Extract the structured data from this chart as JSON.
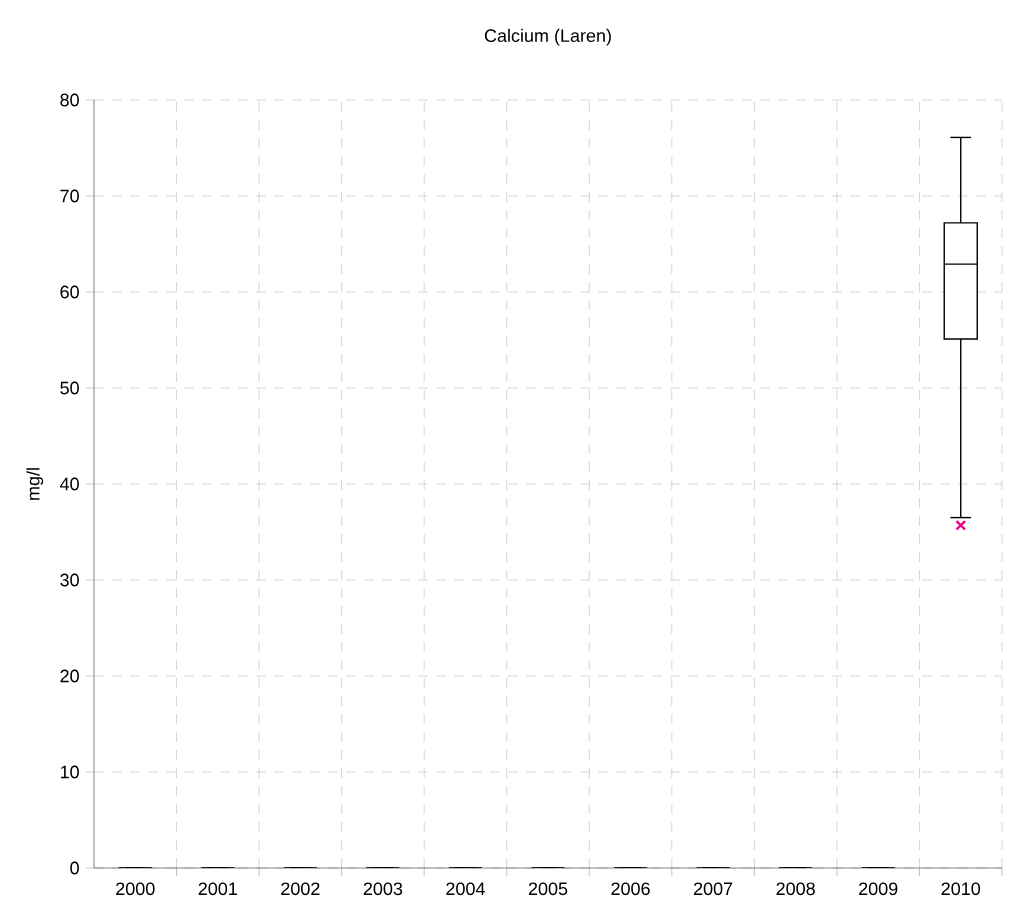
{
  "chart_data": {
    "type": "box",
    "title": "Calcium (Laren)",
    "ylabel": "mg/l",
    "categories": [
      "2000",
      "2001",
      "2002",
      "2003",
      "2004",
      "2005",
      "2006",
      "2007",
      "2008",
      "2009",
      "2010"
    ],
    "boxes": [
      {
        "low": 0,
        "q1": 0,
        "median": 0,
        "q3": 0,
        "high": 0
      },
      {
        "low": 0,
        "q1": 0,
        "median": 0,
        "q3": 0,
        "high": 0
      },
      {
        "low": 0,
        "q1": 0,
        "median": 0,
        "q3": 0,
        "high": 0
      },
      {
        "low": 0,
        "q1": 0,
        "median": 0,
        "q3": 0,
        "high": 0
      },
      {
        "low": 0,
        "q1": 0,
        "median": 0,
        "q3": 0,
        "high": 0
      },
      {
        "low": 0,
        "q1": 0,
        "median": 0,
        "q3": 0,
        "high": 0
      },
      {
        "low": 0,
        "q1": 0,
        "median": 0,
        "q3": 0,
        "high": 0
      },
      {
        "low": 0,
        "q1": 0,
        "median": 0,
        "q3": 0,
        "high": 0
      },
      {
        "low": 0,
        "q1": 0,
        "median": 0,
        "q3": 0,
        "high": 0
      },
      {
        "low": 0,
        "q1": 0,
        "median": 0,
        "q3": 0,
        "high": 0
      },
      {
        "low": 36.5,
        "q1": 55.1,
        "median": 62.9,
        "q3": 67.2,
        "high": 76.1,
        "outliers": [
          35.7
        ]
      }
    ],
    "color": "#000000",
    "marker": "cross",
    "ylim": [
      0,
      80
    ],
    "yticks": [
      0,
      10,
      20,
      30,
      40,
      50,
      60,
      70,
      80
    ],
    "grid": true
  }
}
